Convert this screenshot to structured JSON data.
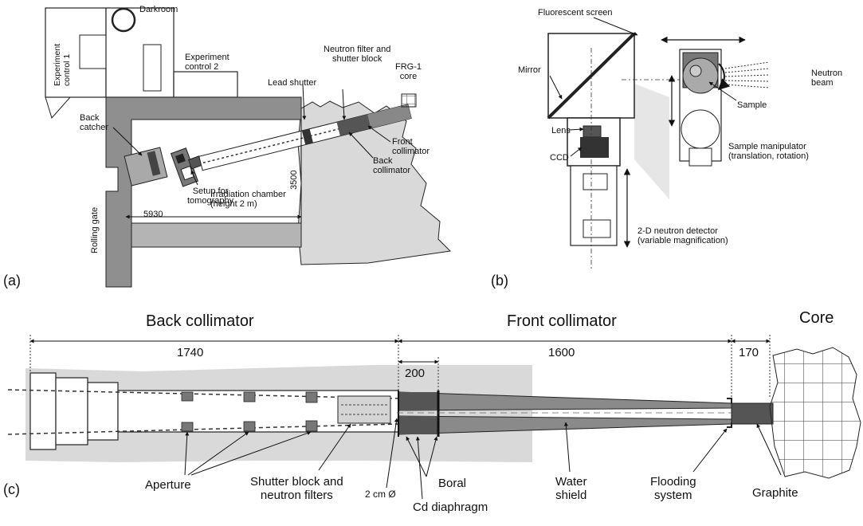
{
  "panels": {
    "a": {
      "letter": "(a)",
      "labels": {
        "experiment_control_1": "Experiment\ncontrol 1",
        "darkroom": "Darkroom",
        "experiment_control_2": "Experiment\ncontrol 2",
        "neutron_filter": "Neutron filter and\nshutter block",
        "frg_core": "FRG-1\ncore",
        "lead_shutter": "Lead shutter",
        "back_catcher": "Back\ncatcher",
        "front_collimator": "Front\ncollimator",
        "back_collimator": "Back\ncollimator",
        "dim_3500": "3500",
        "setup_tomography": "Setup for\ntomography",
        "irradiation_chamber": "Irradiation chamber\n(height 2 m)",
        "dim_5930": "5930",
        "rolling_gate": "Rolling gate"
      }
    },
    "b": {
      "letter": "(b)",
      "labels": {
        "fluorescent_screen": "Fluorescent screen",
        "mirror": "Mirror",
        "lens": "Lens",
        "ccd": "CCD",
        "neutron_beam": "Neutron\nbeam",
        "sample": "Sample",
        "sample_manipulator": "Sample manipulator\n(translation, rotation)",
        "detector": "2-D neutron detector\n(variable magnification)"
      }
    },
    "c": {
      "letter": "(c)",
      "headers": {
        "back_collimator": "Back collimator",
        "front_collimator": "Front collimator",
        "core": "Core"
      },
      "dims": {
        "d1740": "1740",
        "d1600": "1600",
        "d200": "200",
        "d170": "170"
      },
      "labels": {
        "aperture": "Aperture",
        "shutter_block": "Shutter block and\nneutron filters",
        "diameter": "2 cm Ø",
        "boral": "Boral",
        "cd_diaphragm": "Cd diaphragm",
        "water_shield": "Water\nshield",
        "flooding": "Flooding\nsystem",
        "graphite": "Graphite"
      }
    }
  }
}
